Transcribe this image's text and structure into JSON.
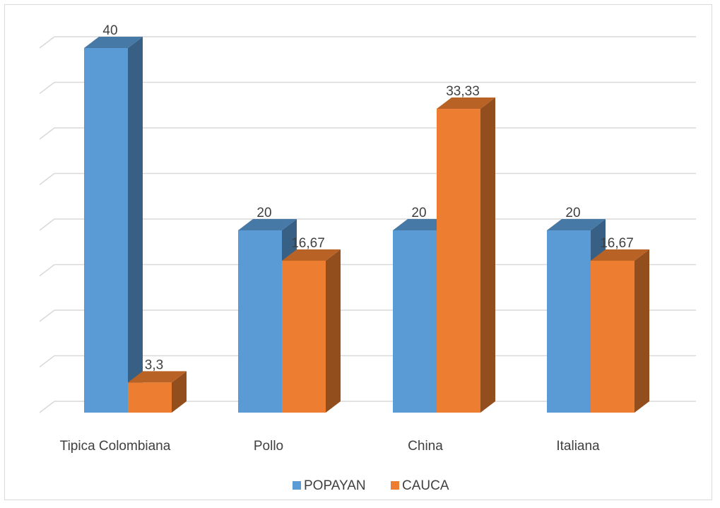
{
  "chart_data": {
    "type": "bar",
    "title": "",
    "xlabel": "",
    "ylabel": "",
    "categories": [
      "Tipica Colombiana",
      "Pollo",
      "China",
      "Italiana"
    ],
    "series": [
      {
        "name": "POPAYAN",
        "values": [
          40,
          20,
          20,
          20
        ],
        "labels": [
          "40",
          "20",
          "20",
          "20"
        ],
        "color": "#5B9BD5"
      },
      {
        "name": "CAUCA",
        "values": [
          3.3,
          16.67,
          33.33,
          16.67
        ],
        "labels": [
          "3,3",
          "16,67",
          "33,33",
          "16,67"
        ],
        "color": "#ED7D31"
      }
    ],
    "ylim": [
      0,
      40
    ],
    "grid": true,
    "legend": "bottom",
    "style": "3d-clustered-column"
  }
}
